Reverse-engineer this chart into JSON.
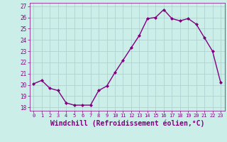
{
  "x": [
    0,
    1,
    2,
    3,
    4,
    5,
    6,
    7,
    8,
    9,
    10,
    11,
    12,
    13,
    14,
    15,
    16,
    17,
    18,
    19,
    20,
    21,
    22,
    23
  ],
  "y": [
    20.1,
    20.4,
    19.7,
    19.5,
    18.4,
    18.2,
    18.2,
    18.2,
    19.5,
    19.9,
    21.1,
    22.2,
    23.3,
    24.4,
    25.9,
    26.0,
    26.7,
    25.9,
    25.7,
    25.9,
    25.4,
    24.2,
    23.0,
    20.2
  ],
  "line_color": "#800080",
  "marker": "D",
  "marker_size": 2,
  "xlabel": "Windchill (Refroidissement éolien,°C)",
  "xlabel_fontsize": 7,
  "xticks": [
    0,
    1,
    2,
    3,
    4,
    5,
    6,
    7,
    8,
    9,
    10,
    11,
    12,
    13,
    14,
    15,
    16,
    17,
    18,
    19,
    20,
    21,
    22,
    23
  ],
  "yticks": [
    18,
    19,
    20,
    21,
    22,
    23,
    24,
    25,
    26,
    27
  ],
  "ylim": [
    17.7,
    27.3
  ],
  "xlim": [
    -0.5,
    23.5
  ],
  "background_color": "#cceee8",
  "grid_color": "#aacccc",
  "line_width": 1.0
}
